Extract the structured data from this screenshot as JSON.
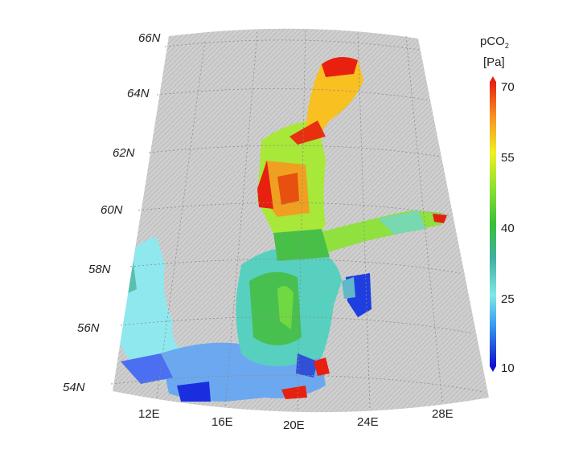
{
  "map": {
    "lat_labels": [
      "66N",
      "64N",
      "62N",
      "60N",
      "58N",
      "56N",
      "54N"
    ],
    "lon_labels": [
      "12E",
      "16E",
      "20E",
      "24E",
      "28E"
    ],
    "terrain_color": "#c9c9c9",
    "grid_color": "#8a8a8a"
  },
  "colorbar": {
    "title_main": "pCO",
    "title_sub": "2",
    "unit": "[Pa]",
    "ticks": [
      "70",
      "55",
      "40",
      "25",
      "10"
    ],
    "range": [
      10,
      70
    ],
    "colors": [
      "#1010d0",
      "#38a0f0",
      "#80e8e8",
      "#40b0a0",
      "#38c038",
      "#88e030",
      "#f0f020",
      "#f89020",
      "#e82010"
    ]
  }
}
